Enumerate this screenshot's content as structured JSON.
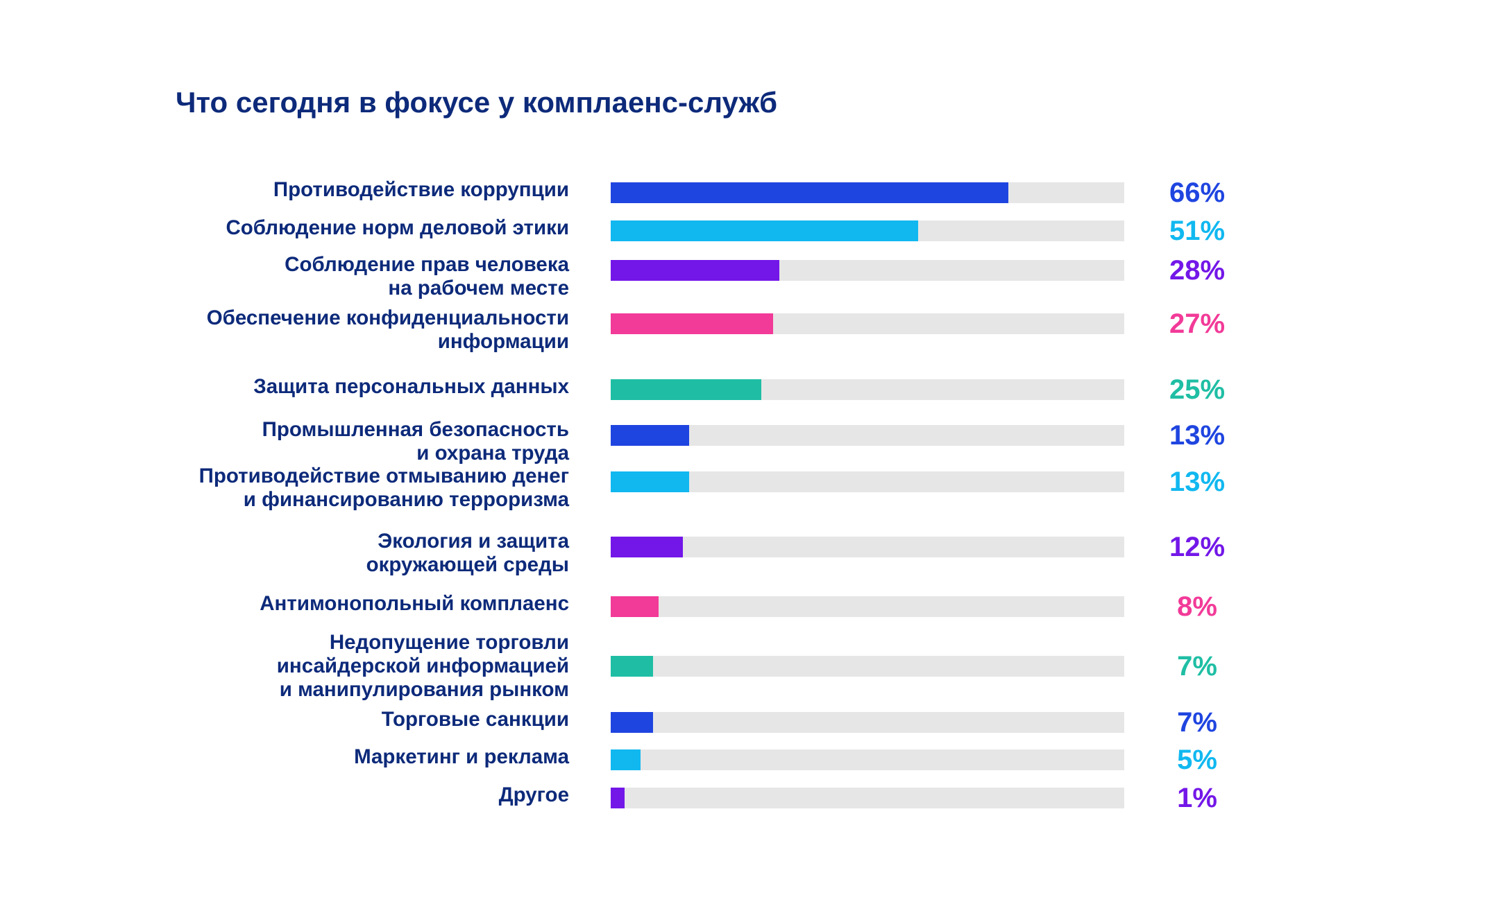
{
  "chart_data": {
    "type": "bar",
    "orientation": "horizontal",
    "title": "Что сегодня в фокусе у комплаенс-служб",
    "xlim": [
      0,
      100
    ],
    "unit": "%",
    "grid": false,
    "categories": [
      [
        "Противодействие коррупции"
      ],
      [
        "Соблюдение норм деловой этики"
      ],
      [
        "Соблюдение прав человека",
        "на рабочем месте"
      ],
      [
        "Обеспечение конфиденциальности",
        "информации"
      ],
      [
        "Защита персональных данных"
      ],
      [
        "Промышленная безопасность",
        "и охрана труда"
      ],
      [
        "Противодействие отмыванию денег",
        "и финансированию терроризма"
      ],
      [
        "Экология и защита",
        "окружающей среды"
      ],
      [
        "Антимонопольный комплаенс"
      ],
      [
        "Недопущение торговли",
        "инсайдерской информацией",
        "и манипулирования рынком"
      ],
      [
        "Торговые санкции"
      ],
      [
        "Маркетинг и реклама"
      ],
      [
        "Другое"
      ]
    ],
    "values": [
      66,
      51,
      28,
      27,
      25,
      13,
      13,
      12,
      8,
      7,
      7,
      5,
      1
    ],
    "value_labels": [
      "66%",
      "51%",
      "28%",
      "27%",
      "25%",
      "13%",
      "13%",
      "12%",
      "8%",
      "7%",
      "7%",
      "5%",
      "1%"
    ],
    "colors": [
      "#1f45e0",
      "#11b8f0",
      "#7317e8",
      "#f23a98",
      "#1fbea4",
      "#1f45e0",
      "#11b8f0",
      "#7317e8",
      "#f23a98",
      "#1fbea4",
      "#1f45e0",
      "#11b8f0",
      "#7317e8"
    ]
  },
  "colors": {
    "title": "#0d2a7a",
    "label": "#0d2a7a",
    "track": "#e6e6e6",
    "background": "#ffffff"
  }
}
